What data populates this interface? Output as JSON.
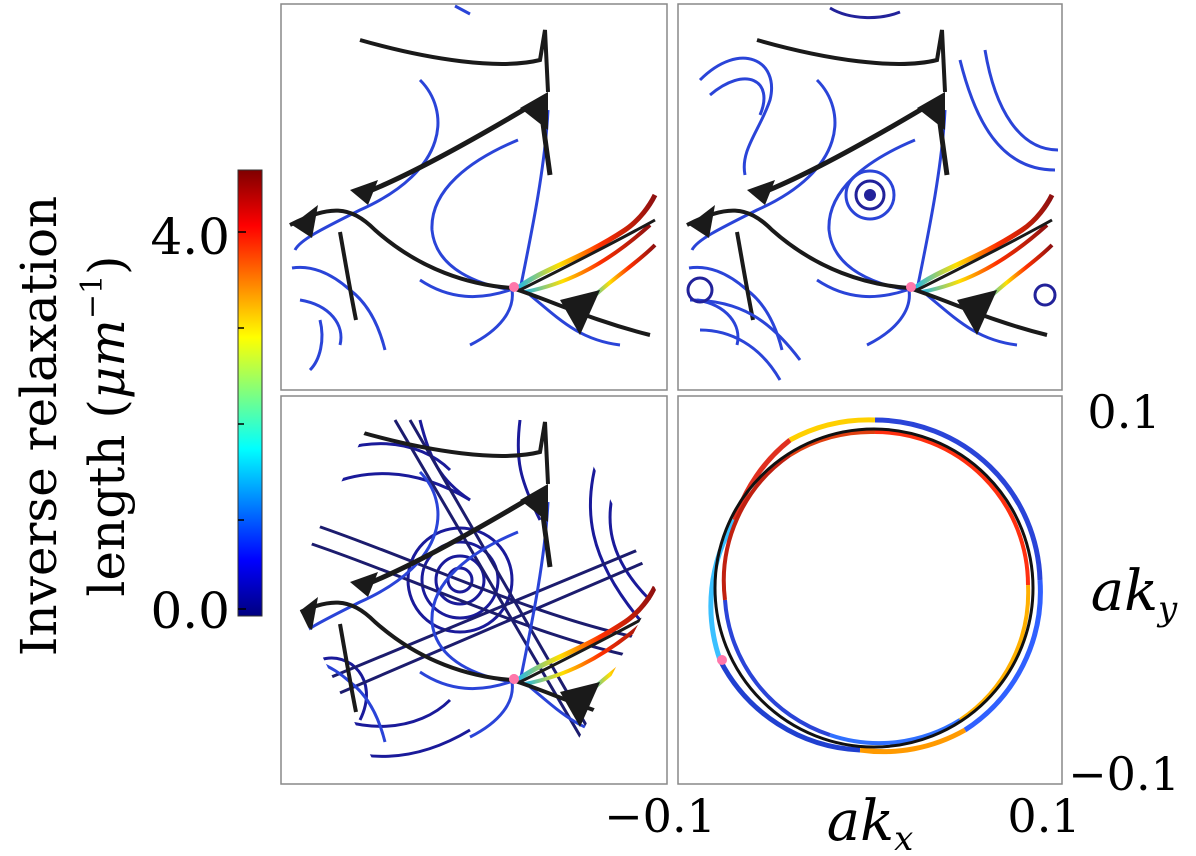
{
  "chart_data": {
    "type": "scatter",
    "colorbar": {
      "label_line1": "Inverse relaxation",
      "label_line2": "length (",
      "label_unit": "μm",
      "label_exp": "−1",
      "label_close": ")",
      "ticks": [
        "4.0",
        "0.0"
      ],
      "tick_values": [
        4.0,
        0.0
      ],
      "range": [
        0.0,
        4.8
      ],
      "colormap": "jet"
    },
    "axes": {
      "x_label": "ak",
      "x_sub": "x",
      "y_label": "ak",
      "y_sub": "y",
      "x_ticks": [
        "−0.1",
        "0.1"
      ],
      "y_ticks": [
        "0.1",
        "−0.1"
      ],
      "xlim": [
        -0.1,
        0.1
      ],
      "ylim": [
        -0.1,
        0.1
      ]
    },
    "panels": [
      {
        "position": "top-left",
        "content": "streamlines"
      },
      {
        "position": "top-right",
        "content": "streamlines"
      },
      {
        "position": "bottom-left",
        "content": "streamlines-hexagon"
      },
      {
        "position": "bottom-right",
        "content": "ring",
        "ring_radius": 0.07
      }
    ],
    "colors": {
      "low": "#0a0a8c",
      "mid": "#21b8e8",
      "high": "#9e1212",
      "separatrix": "#1a1a1a",
      "marker": "#ff77aa"
    }
  }
}
